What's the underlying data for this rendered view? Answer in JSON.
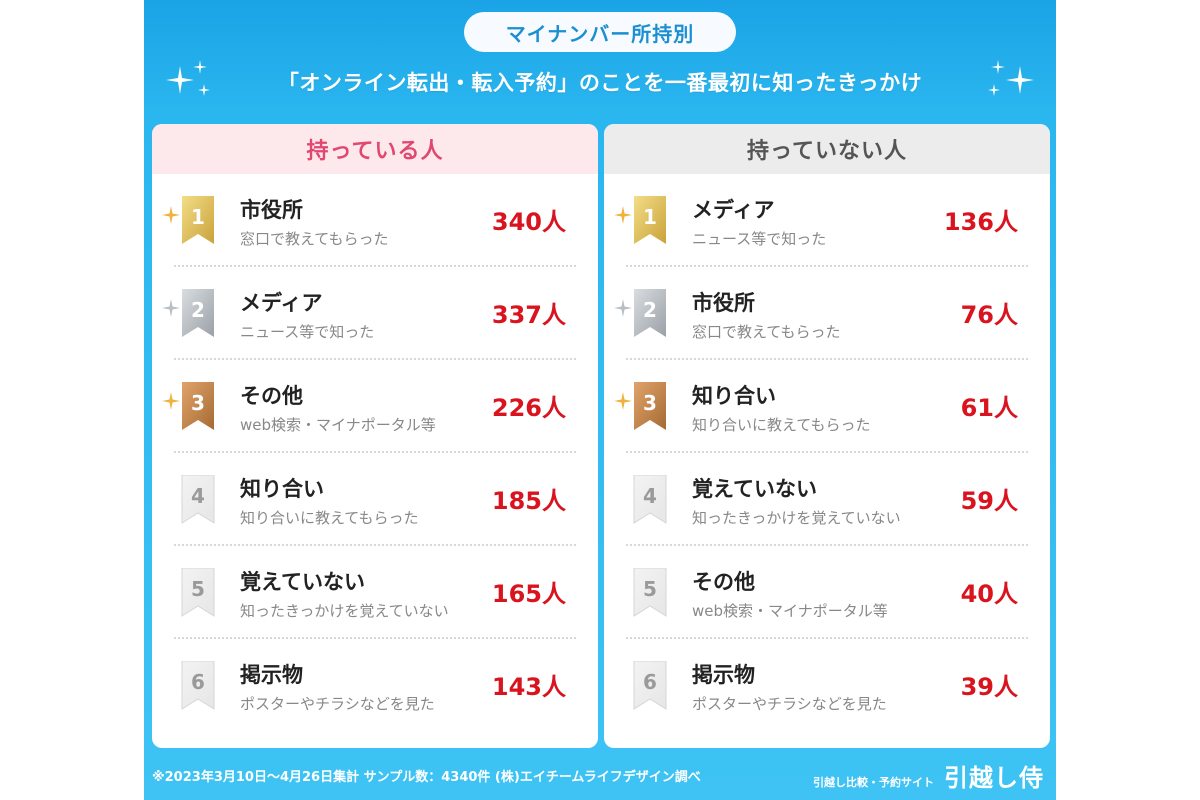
{
  "header": {
    "pill": "マイナンバー所持別",
    "headline": "「オンライン転出・転入予約」のことを一番最初に知ったきっかけ"
  },
  "panels": [
    {
      "title": "持っている人",
      "items": [
        {
          "rank": "1",
          "title": "市役所",
          "sub": "窓口で教えてもらった",
          "count": "340人"
        },
        {
          "rank": "2",
          "title": "メディア",
          "sub": "ニュース等で知った",
          "count": "337人"
        },
        {
          "rank": "3",
          "title": "その他",
          "sub": "web検索・マイナポータル等",
          "count": "226人"
        },
        {
          "rank": "4",
          "title": "知り合い",
          "sub": "知り合いに教えてもらった",
          "count": "185人"
        },
        {
          "rank": "5",
          "title": "覚えていない",
          "sub": "知ったきっかけを覚えていない",
          "count": "165人"
        },
        {
          "rank": "6",
          "title": "掲示物",
          "sub": "ポスターやチラシなどを見た",
          "count": "143人"
        }
      ]
    },
    {
      "title": "持っていない人",
      "items": [
        {
          "rank": "1",
          "title": "メディア",
          "sub": "ニュース等で知った",
          "count": "136人"
        },
        {
          "rank": "2",
          "title": "市役所",
          "sub": "窓口で教えてもらった",
          "count": "76人"
        },
        {
          "rank": "3",
          "title": "知り合い",
          "sub": "知り合いに教えてもらった",
          "count": "61人"
        },
        {
          "rank": "4",
          "title": "覚えていない",
          "sub": "知ったきっかけを覚えていない",
          "count": "59人"
        },
        {
          "rank": "5",
          "title": "その他",
          "sub": "web検索・マイナポータル等",
          "count": "40人"
        },
        {
          "rank": "6",
          "title": "掲示物",
          "sub": "ポスターやチラシなどを見た",
          "count": "39人"
        }
      ]
    }
  ],
  "footer": {
    "note": "※2023年3月10日～4月26日集計 サンプル数：4340件 (株)エイチームライフデザイン調べ",
    "site_caption": "引越し比較・予約サイト",
    "site_logo": "引越し侍"
  },
  "colors": {
    "gold": "#c9a23a",
    "silver": "#9aa0a6",
    "bronze": "#a56a33",
    "plain": "#e6e6e6",
    "count": "#d9141f",
    "left_title": "#e2486f",
    "right_title": "#555555"
  },
  "icons": {
    "sparkle": "sparkle-icon",
    "ribbon": "ribbon-badge-icon"
  }
}
